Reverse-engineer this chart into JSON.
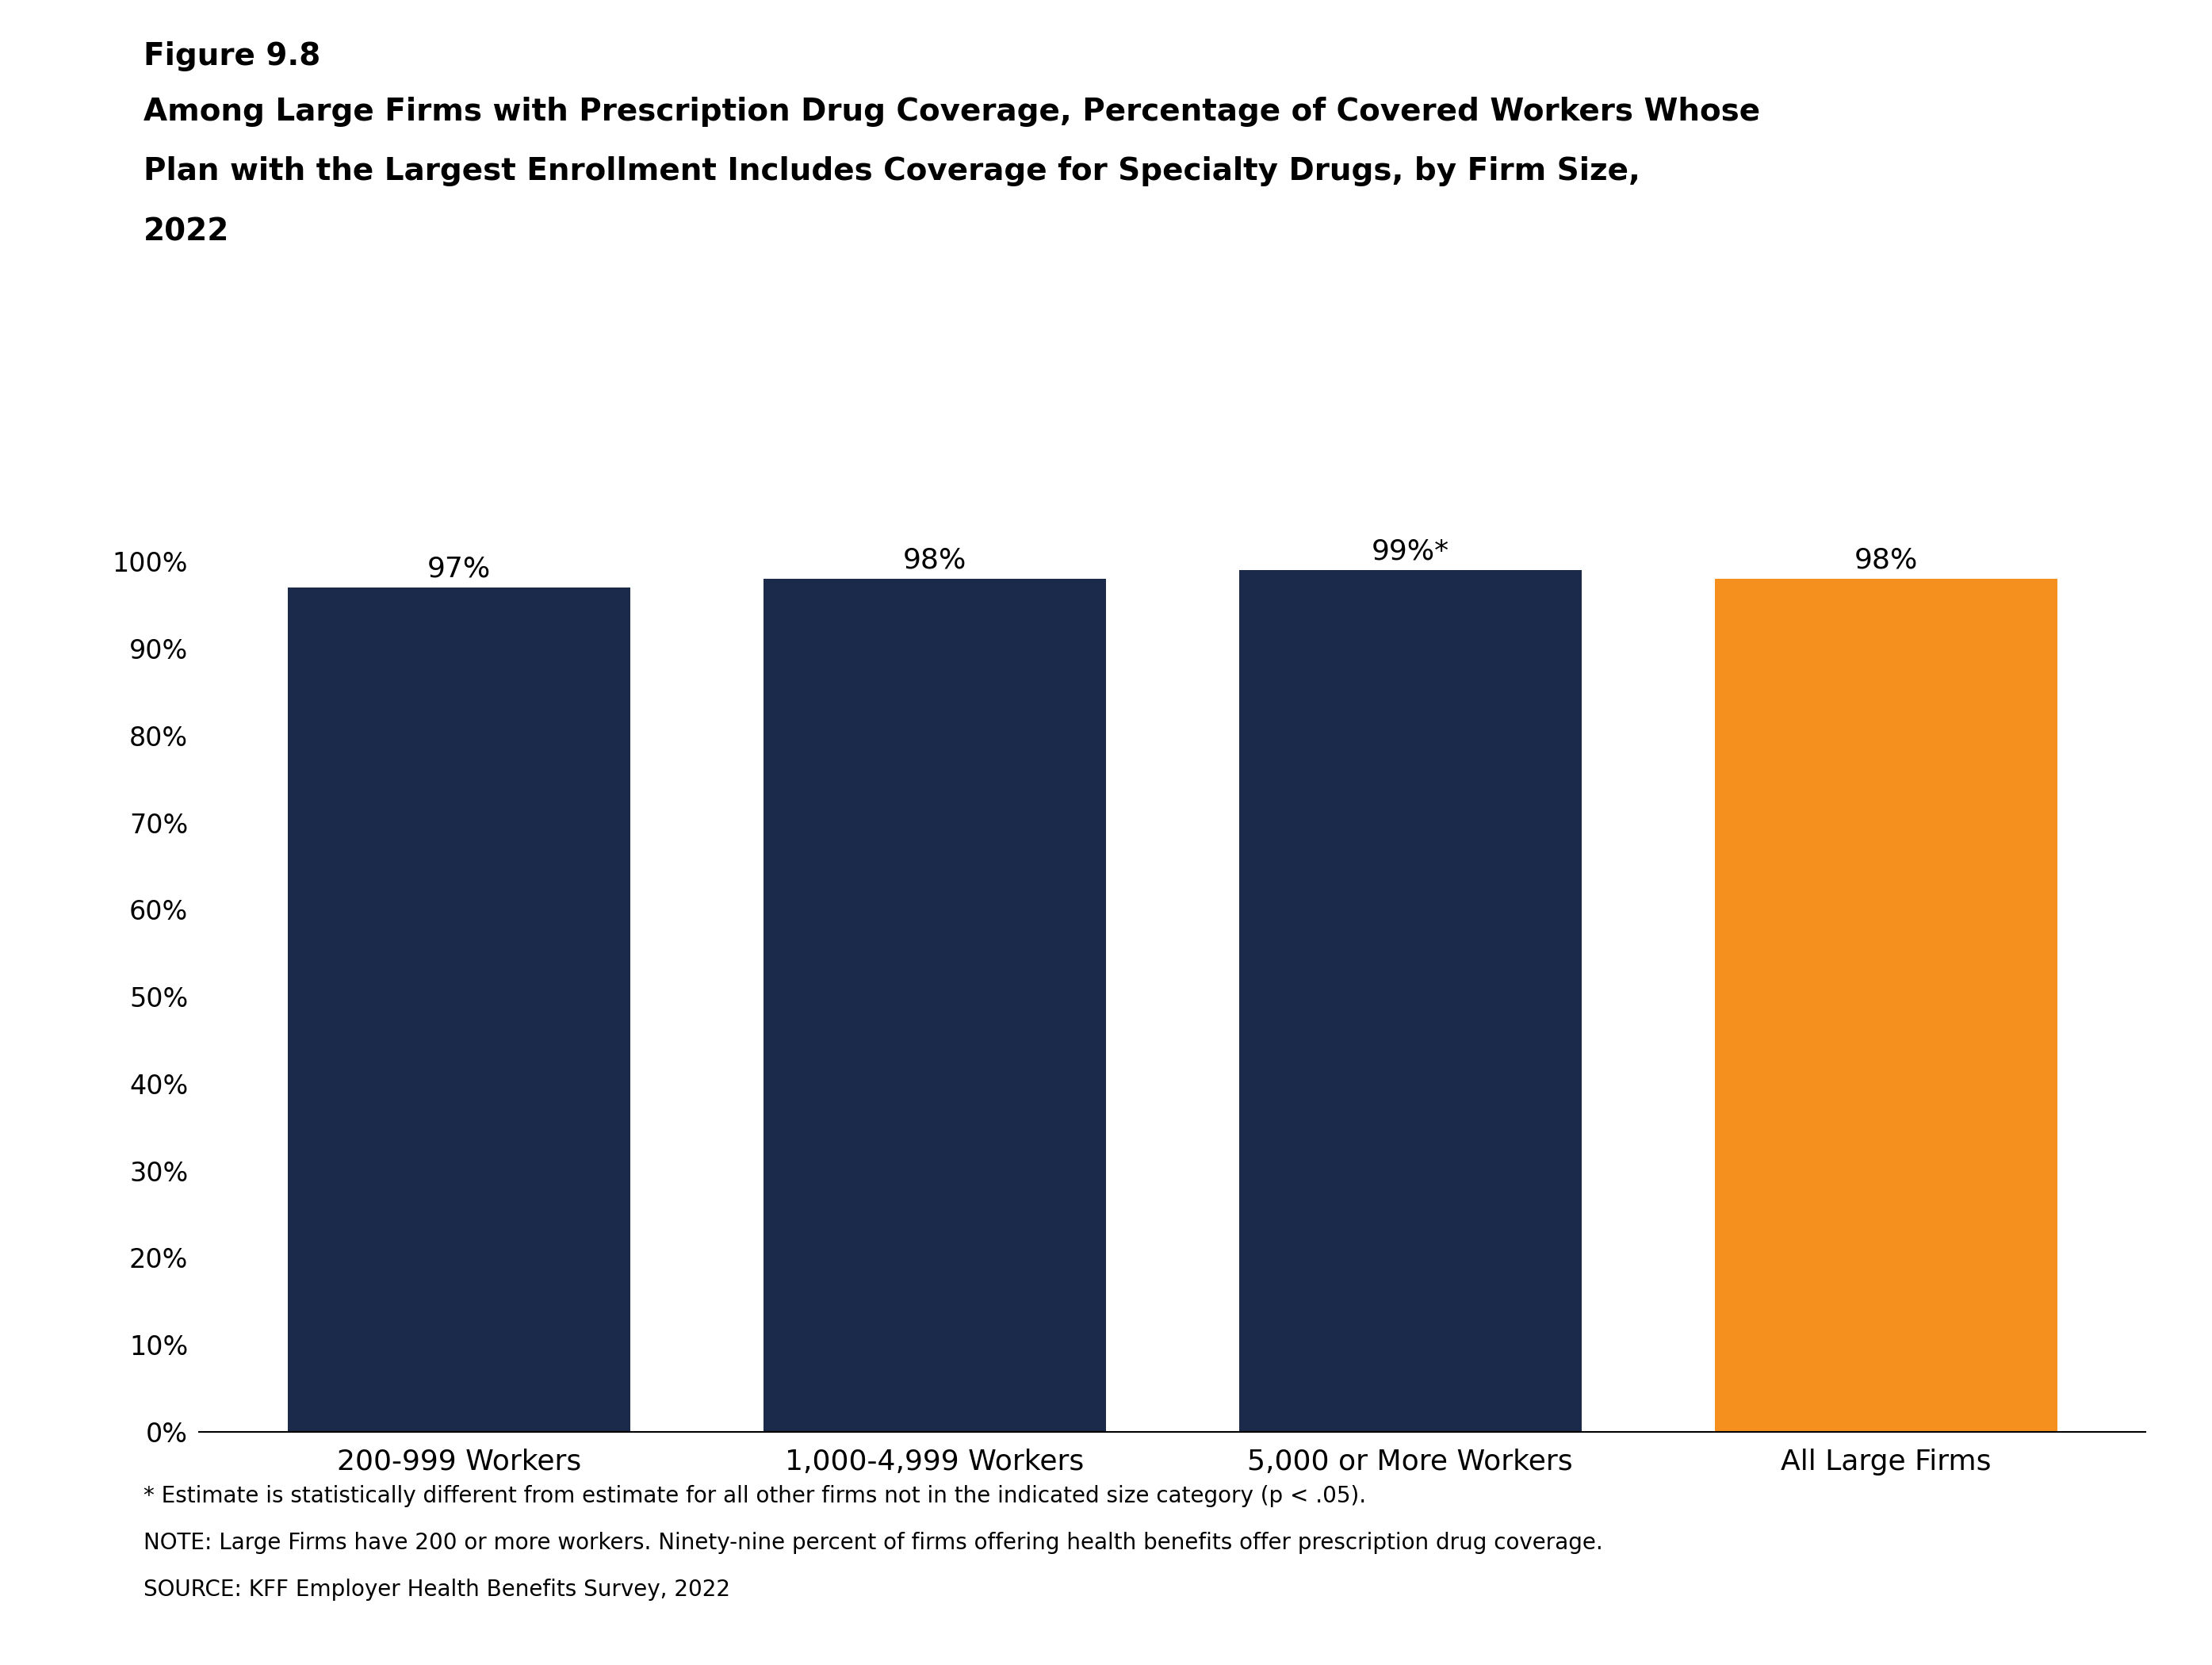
{
  "figure_label": "Figure 9.8",
  "title_line1": "Among Large Firms with Prescription Drug Coverage, Percentage of Covered Workers Whose",
  "title_line2": "Plan with the Largest Enrollment Includes Coverage for Specialty Drugs, by Firm Size,",
  "title_line3": "2022",
  "categories": [
    "200-999 Workers",
    "1,000-4,999 Workers",
    "5,000 or More Workers",
    "All Large Firms"
  ],
  "values": [
    97,
    98,
    99,
    98
  ],
  "bar_labels": [
    "97%",
    "98%",
    "99%*",
    "98%"
  ],
  "bar_colors": [
    "#1b2a4a",
    "#1b2a4a",
    "#1b2a4a",
    "#f5901e"
  ],
  "ylim": [
    0,
    110
  ],
  "ytick_values": [
    0,
    10,
    20,
    30,
    40,
    50,
    60,
    70,
    80,
    90,
    100
  ],
  "ytick_labels": [
    "0%",
    "10%",
    "20%",
    "30%",
    "40%",
    "50%",
    "60%",
    "70%",
    "80%",
    "90%",
    "100%"
  ],
  "footnote1": "* Estimate is statistically different from estimate for all other firms not in the indicated size category (p < .05).",
  "footnote2": "NOTE: Large Firms have 200 or more workers. Ninety-nine percent of firms offering health benefits offer prescription drug coverage.",
  "footnote3": "SOURCE: KFF Employer Health Benefits Survey, 2022",
  "background_color": "#ffffff",
  "bar_label_fontsize": 26,
  "title_fontsize": 28,
  "figure_label_fontsize": 28,
  "footnote_fontsize": 20,
  "tick_fontsize": 24,
  "xticklabel_fontsize": 26,
  "bar_width": 0.72
}
